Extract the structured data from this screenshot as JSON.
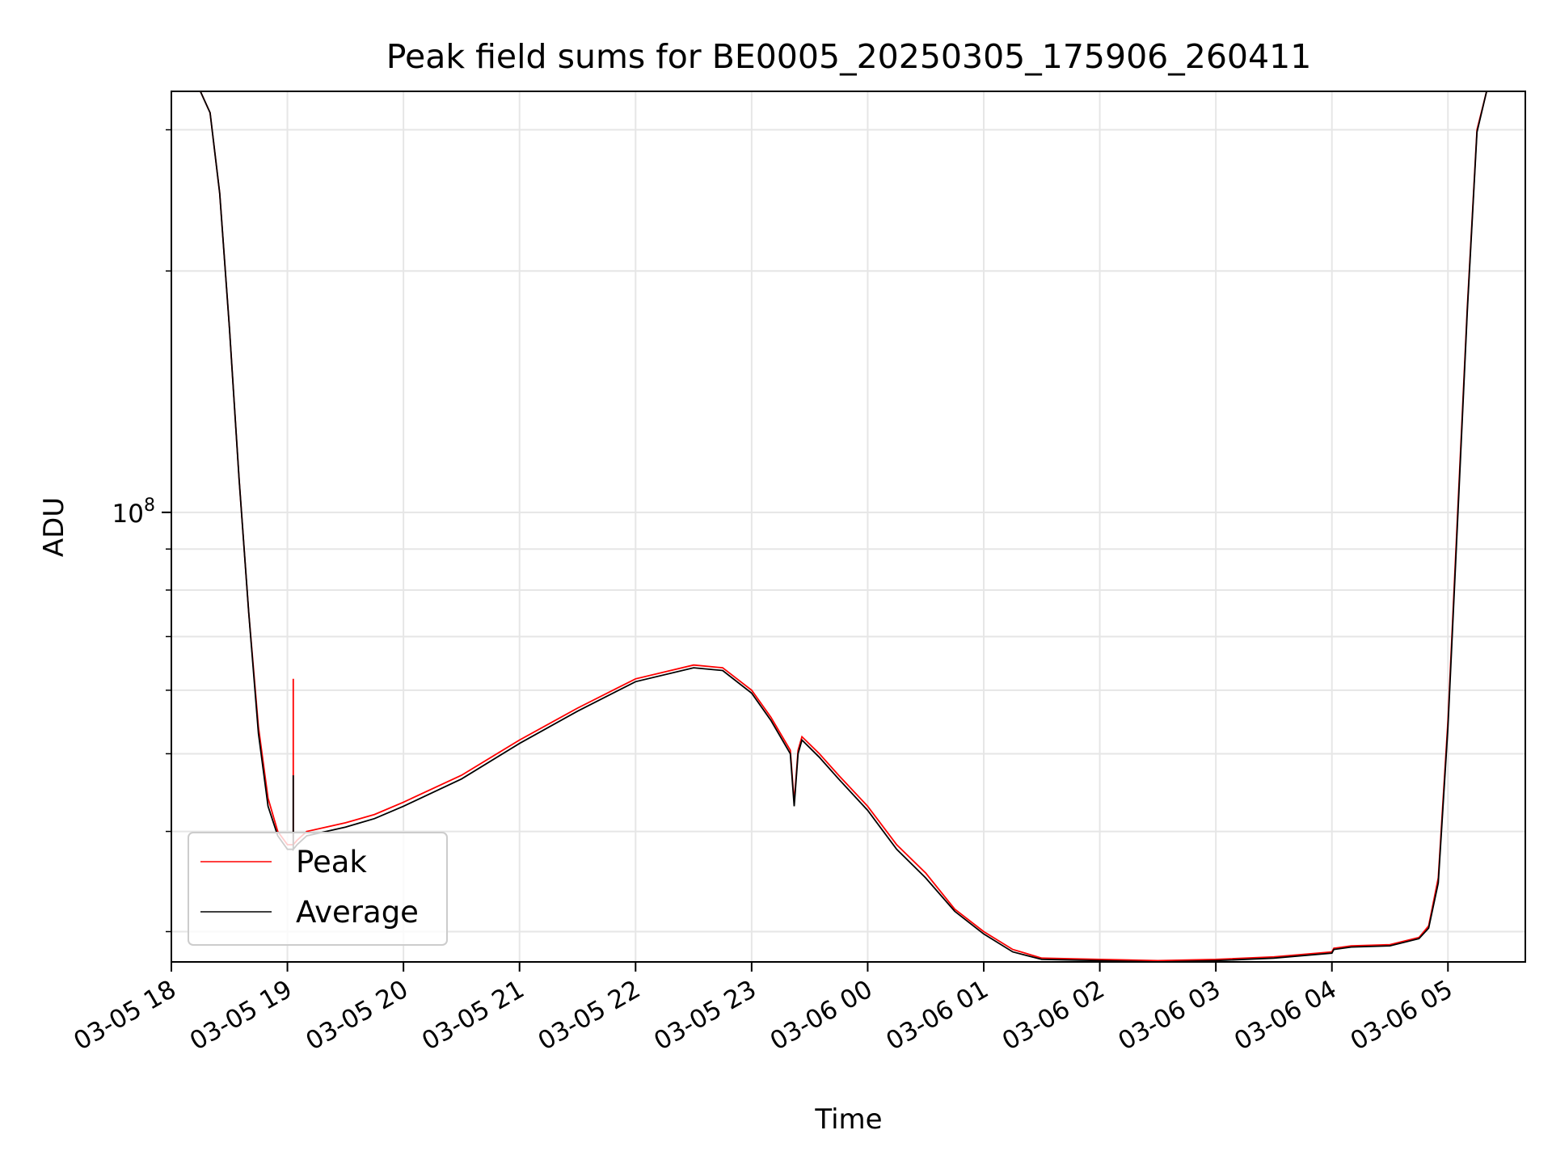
{
  "chart_data": {
    "type": "line",
    "title": "Peak field sums for BE0005_20250305_175906_260411",
    "xlabel": "Time",
    "ylabel": "ADU",
    "x_ticks": [
      "03-05 18",
      "03-05 19",
      "03-05 20",
      "03-05 21",
      "03-05 22",
      "03-05 23",
      "03-06 00",
      "03-06 01",
      "03-06 02",
      "03-06 03",
      "03-06 04",
      "03-06 05"
    ],
    "x_range": [
      "2025-03-05 18:00",
      "2025-03-06 05:40"
    ],
    "y_scale": "log",
    "y_ticks_major": [
      "10^8"
    ],
    "ylim": [
      27500000,
      335000000
    ],
    "grid": true,
    "legend": {
      "position": "lower-left",
      "entries": [
        "Peak",
        "Average"
      ]
    },
    "series": [
      {
        "name": "Peak",
        "color": "#ff0000",
        "x": [
          "2025-03-05 18:15",
          "2025-03-05 18:20",
          "2025-03-05 18:25",
          "2025-03-05 18:30",
          "2025-03-05 18:35",
          "2025-03-05 18:40",
          "2025-03-05 18:45",
          "2025-03-05 18:50",
          "2025-03-05 18:55",
          "2025-03-05 19:00",
          "2025-03-05 19:03",
          "2025-03-05 19:03",
          "2025-03-05 19:03",
          "2025-03-05 19:05",
          "2025-03-05 19:10",
          "2025-03-05 19:20",
          "2025-03-05 19:30",
          "2025-03-05 19:45",
          "2025-03-05 20:00",
          "2025-03-05 20:30",
          "2025-03-05 21:00",
          "2025-03-05 21:30",
          "2025-03-05 22:00",
          "2025-03-05 22:30",
          "2025-03-05 22:45",
          "2025-03-05 23:00",
          "2025-03-05 23:10",
          "2025-03-05 23:20",
          "2025-03-05 23:22",
          "2025-03-05 23:24",
          "2025-03-05 23:26",
          "2025-03-05 23:35",
          "2025-03-05 23:45",
          "2025-03-06 00:00",
          "2025-03-06 00:15",
          "2025-03-06 00:30",
          "2025-03-06 00:45",
          "2025-03-06 01:00",
          "2025-03-06 01:15",
          "2025-03-06 01:30",
          "2025-03-06 02:00",
          "2025-03-06 02:30",
          "2025-03-06 03:00",
          "2025-03-06 03:30",
          "2025-03-06 04:00",
          "2025-03-06 04:01",
          "2025-03-06 04:10",
          "2025-03-06 04:30",
          "2025-03-06 04:45",
          "2025-03-06 04:50",
          "2025-03-06 04:55",
          "2025-03-06 05:00",
          "2025-03-06 05:05",
          "2025-03-06 05:10",
          "2025-03-06 05:15",
          "2025-03-06 05:20",
          "2025-03-06 05:25"
        ],
        "y": [
          335000000,
          315000000,
          250000000,
          170000000,
          110000000,
          75000000,
          54000000,
          44000000,
          40000000,
          38500000,
          38500000,
          62000000,
          38500000,
          39000000,
          40000000,
          40500000,
          41000000,
          42000000,
          43500000,
          47000000,
          52000000,
          57000000,
          62000000,
          64500000,
          64000000,
          60000000,
          55500000,
          50500000,
          43500000,
          50500000,
          52500000,
          50000000,
          47000000,
          43000000,
          38500000,
          35500000,
          32000000,
          30000000,
          28500000,
          27800000,
          27700000,
          27600000,
          27700000,
          27900000,
          28300000,
          28600000,
          28800000,
          28900000,
          29500000,
          30500000,
          35000000,
          55000000,
          100000000,
          180000000,
          300000000,
          335000000,
          335000000
        ]
      },
      {
        "name": "Average",
        "color": "#000000",
        "x": [
          "2025-03-05 18:15",
          "2025-03-05 18:20",
          "2025-03-05 18:25",
          "2025-03-05 18:30",
          "2025-03-05 18:35",
          "2025-03-05 18:40",
          "2025-03-05 18:45",
          "2025-03-05 18:50",
          "2025-03-05 18:55",
          "2025-03-05 19:00",
          "2025-03-05 19:03",
          "2025-03-05 19:03",
          "2025-03-05 19:03",
          "2025-03-05 19:05",
          "2025-03-05 19:10",
          "2025-03-05 19:20",
          "2025-03-05 19:30",
          "2025-03-05 19:45",
          "2025-03-05 20:00",
          "2025-03-05 20:30",
          "2025-03-05 21:00",
          "2025-03-05 21:30",
          "2025-03-05 22:00",
          "2025-03-05 22:30",
          "2025-03-05 22:45",
          "2025-03-05 23:00",
          "2025-03-05 23:10",
          "2025-03-05 23:20",
          "2025-03-05 23:22",
          "2025-03-05 23:24",
          "2025-03-05 23:26",
          "2025-03-05 23:35",
          "2025-03-05 23:45",
          "2025-03-06 00:00",
          "2025-03-06 00:15",
          "2025-03-06 00:30",
          "2025-03-06 00:45",
          "2025-03-06 01:00",
          "2025-03-06 01:15",
          "2025-03-06 01:30",
          "2025-03-06 02:00",
          "2025-03-06 02:30",
          "2025-03-06 03:00",
          "2025-03-06 03:30",
          "2025-03-06 04:00",
          "2025-03-06 04:01",
          "2025-03-06 04:10",
          "2025-03-06 04:30",
          "2025-03-06 04:45",
          "2025-03-06 04:50",
          "2025-03-06 04:55",
          "2025-03-06 05:00",
          "2025-03-06 05:05",
          "2025-03-06 05:10",
          "2025-03-06 05:15",
          "2025-03-06 05:20",
          "2025-03-06 05:25"
        ],
        "y": [
          335000000,
          315000000,
          250000000,
          170000000,
          110000000,
          75000000,
          53000000,
          43000000,
          39500000,
          38000000,
          38000000,
          47000000,
          38000000,
          38500000,
          39500000,
          40000000,
          40500000,
          41500000,
          43000000,
          46500000,
          51500000,
          56500000,
          61500000,
          64000000,
          63500000,
          59500000,
          55000000,
          50000000,
          43000000,
          50000000,
          52000000,
          49500000,
          46500000,
          42500000,
          38000000,
          35000000,
          31800000,
          29800000,
          28300000,
          27700000,
          27600000,
          27500000,
          27600000,
          27800000,
          28200000,
          28500000,
          28700000,
          28800000,
          29400000,
          30300000,
          34500000,
          54000000,
          98000000,
          178000000,
          298000000,
          335000000,
          335000000
        ]
      }
    ]
  }
}
